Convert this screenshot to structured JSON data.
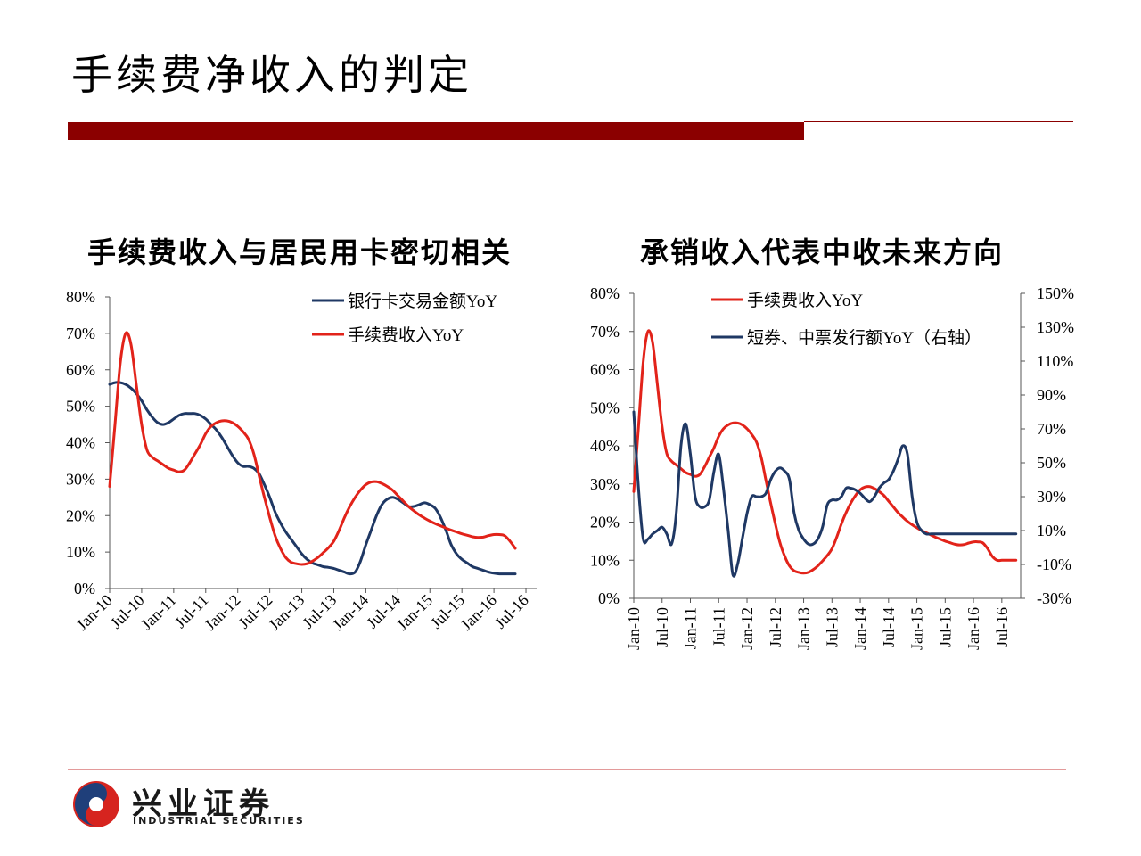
{
  "page_title": "手续费净收入的判定",
  "colors": {
    "accent": "#8b0000",
    "red": "#e2231a",
    "navy": "#1f3864"
  },
  "brand": {
    "name_cn": "兴业证券",
    "name_en": "INDUSTRIAL SECURITIES"
  },
  "chart_data": [
    {
      "type": "line",
      "title": "手续费收入与居民用卡密切相关",
      "x_ticks": [
        "Jan-10",
        "Jul-10",
        "Jan-11",
        "Jul-11",
        "Jan-12",
        "Jul-12",
        "Jan-13",
        "Jul-13",
        "Jan-14",
        "Jul-14",
        "Jan-15",
        "Jul-15",
        "Jan-16",
        "Jul-16"
      ],
      "ylim": [
        0,
        80
      ],
      "y_ticks": [
        "0%",
        "10%",
        "20%",
        "30%",
        "40%",
        "50%",
        "60%",
        "70%",
        "80%"
      ],
      "legend": [
        "银行卡交易金额YoY",
        "手续费收入YoY"
      ],
      "series": [
        {
          "name": "银行卡交易金额YoY",
          "color": "#1f3864",
          "x": [
            0,
            1,
            2,
            3,
            4,
            5,
            6,
            7,
            8,
            9,
            10,
            11,
            12,
            13,
            14,
            15,
            16,
            17,
            18,
            19,
            20,
            21,
            22,
            23,
            24,
            25,
            26,
            27,
            28,
            29,
            30,
            31,
            32,
            33,
            34,
            35,
            36,
            37,
            38,
            39,
            40,
            41,
            42,
            43,
            44,
            45,
            46,
            47,
            48,
            49,
            50,
            51,
            52,
            53,
            54,
            55,
            56,
            57,
            58,
            59,
            60,
            61,
            62,
            63,
            64,
            65,
            66,
            67,
            68,
            69,
            70,
            71,
            72,
            73,
            74,
            75,
            76
          ],
          "values": [
            56,
            56.5,
            56.5,
            56,
            55,
            53.5,
            51.5,
            49,
            47,
            45.5,
            45,
            45.5,
            46.5,
            47.5,
            48,
            48,
            48,
            47.5,
            46.5,
            45,
            43.5,
            41.5,
            39,
            36.5,
            34.5,
            33.5,
            33.5,
            33,
            31.5,
            28.5,
            25,
            21,
            18,
            15.5,
            13.5,
            11.5,
            9.5,
            8,
            7,
            6.5,
            6,
            5.8,
            5.5,
            5,
            4.5,
            4,
            4.5,
            7.5,
            12,
            16,
            20,
            23,
            24.5,
            25,
            24.5,
            23.5,
            22.5,
            22.5,
            23,
            23.5,
            23,
            22,
            19.5,
            16,
            12,
            9.5,
            8,
            7,
            6,
            5.5,
            5,
            4.5,
            4.2,
            4,
            4,
            4,
            4
          ]
        },
        {
          "name": "手续费收入YoY",
          "color": "#e2231a",
          "x": [
            0,
            1,
            2,
            3,
            4,
            5,
            6,
            7,
            8,
            9,
            10,
            11,
            12,
            13,
            14,
            15,
            16,
            17,
            18,
            19,
            20,
            21,
            22,
            23,
            24,
            25,
            26,
            27,
            28,
            29,
            30,
            31,
            32,
            33,
            34,
            35,
            36,
            37,
            38,
            39,
            40,
            41,
            42,
            43,
            44,
            45,
            46,
            47,
            48,
            49,
            50,
            51,
            52,
            53,
            54,
            55,
            56,
            57,
            58,
            59,
            60,
            61,
            62,
            63,
            64,
            65,
            66,
            67,
            68,
            69,
            70,
            71,
            72,
            73,
            74,
            75,
            76
          ],
          "values": [
            28,
            45,
            62,
            70,
            67,
            56,
            45,
            38,
            36,
            35,
            34,
            33,
            32.5,
            32,
            32.5,
            34.5,
            37,
            39.5,
            42.5,
            44.5,
            45.5,
            46,
            46,
            45.5,
            44.5,
            43,
            41,
            37,
            31,
            25,
            19.5,
            14.5,
            11,
            8.5,
            7.2,
            6.8,
            6.6,
            6.8,
            7.5,
            8.5,
            9.8,
            11.2,
            13,
            16,
            19.5,
            22.5,
            25,
            27,
            28.5,
            29.2,
            29.3,
            28.8,
            28,
            27,
            25.5,
            24,
            22.5,
            21.3,
            20.2,
            19.3,
            18.5,
            17.8,
            17.2,
            16.6,
            16,
            15.5,
            15,
            14.6,
            14.2,
            14,
            14.1,
            14.5,
            14.8,
            14.8,
            14.5,
            13,
            11
          ]
        }
      ]
    },
    {
      "type": "line",
      "title": "承销收入代表中收未来方向",
      "x_ticks": [
        "Jan-10",
        "Jul-10",
        "Jan-11",
        "Jul-11",
        "Jan-12",
        "Jul-12",
        "Jan-13",
        "Jul-13",
        "Jan-14",
        "Jul-14",
        "Jan-15",
        "Jul-15",
        "Jan-16",
        "Jul-16"
      ],
      "ylim": [
        0,
        80
      ],
      "y_ticks": [
        "0%",
        "10%",
        "20%",
        "30%",
        "40%",
        "50%",
        "60%",
        "70%",
        "80%"
      ],
      "y2lim": [
        -30,
        150
      ],
      "y2_ticks": [
        "-30%",
        "-10%",
        "10%",
        "30%",
        "50%",
        "70%",
        "90%",
        "110%",
        "130%",
        "150%"
      ],
      "legend": [
        "手续费收入YoY",
        "短券、中票发行额YoY（右轴）"
      ],
      "series": [
        {
          "name": "手续费收入YoY",
          "color": "#e2231a",
          "axis": "left",
          "x": [
            0,
            1,
            2,
            3,
            4,
            5,
            6,
            7,
            8,
            9,
            10,
            11,
            12,
            13,
            14,
            15,
            16,
            17,
            18,
            19,
            20,
            21,
            22,
            23,
            24,
            25,
            26,
            27,
            28,
            29,
            30,
            31,
            32,
            33,
            34,
            35,
            36,
            37,
            38,
            39,
            40,
            41,
            42,
            43,
            44,
            45,
            46,
            47,
            48,
            49,
            50,
            51,
            52,
            53,
            54,
            55,
            56,
            57,
            58,
            59,
            60,
            61,
            62,
            63,
            64,
            65,
            66,
            67,
            68,
            69,
            70,
            71,
            72,
            73,
            74,
            75,
            76,
            77,
            78,
            79,
            80,
            81
          ],
          "values": [
            28,
            45,
            62,
            70,
            67,
            56,
            45,
            38,
            36,
            35,
            34,
            33,
            32.5,
            32,
            32.5,
            34.5,
            37,
            39.5,
            42.5,
            44.5,
            45.5,
            46,
            46,
            45.5,
            44.5,
            43,
            41,
            37,
            31,
            25,
            19.5,
            14.5,
            11,
            8.5,
            7.2,
            6.8,
            6.6,
            6.8,
            7.5,
            8.5,
            9.8,
            11.2,
            13,
            16,
            19.5,
            22.5,
            25,
            27,
            28.5,
            29.2,
            29.3,
            28.8,
            28,
            27,
            25.5,
            24,
            22.5,
            21.3,
            20.2,
            19.3,
            18.5,
            17.8,
            17.2,
            16.6,
            16,
            15.5,
            15,
            14.6,
            14.2,
            14,
            14.1,
            14.5,
            14.8,
            14.8,
            14.5,
            13,
            11,
            10,
            10,
            10,
            10,
            10
          ]
        },
        {
          "name": "短券、中票发行额YoY（右轴）",
          "color": "#1f3864",
          "axis": "right",
          "x": [
            0,
            1,
            2,
            3,
            4,
            5,
            6,
            7,
            8,
            9,
            10,
            11,
            12,
            13,
            14,
            15,
            16,
            17,
            18,
            19,
            20,
            21,
            22,
            23,
            24,
            25,
            26,
            27,
            28,
            29,
            30,
            31,
            32,
            33,
            34,
            35,
            36,
            37,
            38,
            39,
            40,
            41,
            42,
            43,
            44,
            45,
            46,
            47,
            48,
            49,
            50,
            51,
            52,
            53,
            54,
            55,
            56,
            57,
            58,
            59,
            60,
            61,
            62,
            63,
            64,
            65,
            66,
            67,
            68,
            69,
            70,
            71,
            72,
            73,
            74,
            75,
            76,
            77,
            78,
            79,
            80,
            81
          ],
          "values": [
            80,
            35,
            5,
            5,
            8,
            10,
            12,
            8,
            2,
            20,
            60,
            73,
            55,
            30,
            24,
            24,
            28,
            45,
            55,
            35,
            10,
            -16,
            -10,
            5,
            20,
            30,
            30,
            30,
            32,
            40,
            45,
            47,
            45,
            40,
            20,
            10,
            5,
            2,
            2,
            5,
            12,
            25,
            28,
            28,
            30,
            35,
            35,
            34,
            32,
            29,
            27,
            30,
            35,
            38,
            40,
            45,
            52,
            60,
            55,
            30,
            15,
            10,
            8,
            8,
            8,
            8,
            8,
            8,
            8,
            8,
            8,
            8,
            8,
            8,
            8,
            8,
            8,
            8,
            8,
            8,
            8,
            8
          ]
        }
      ]
    }
  ]
}
